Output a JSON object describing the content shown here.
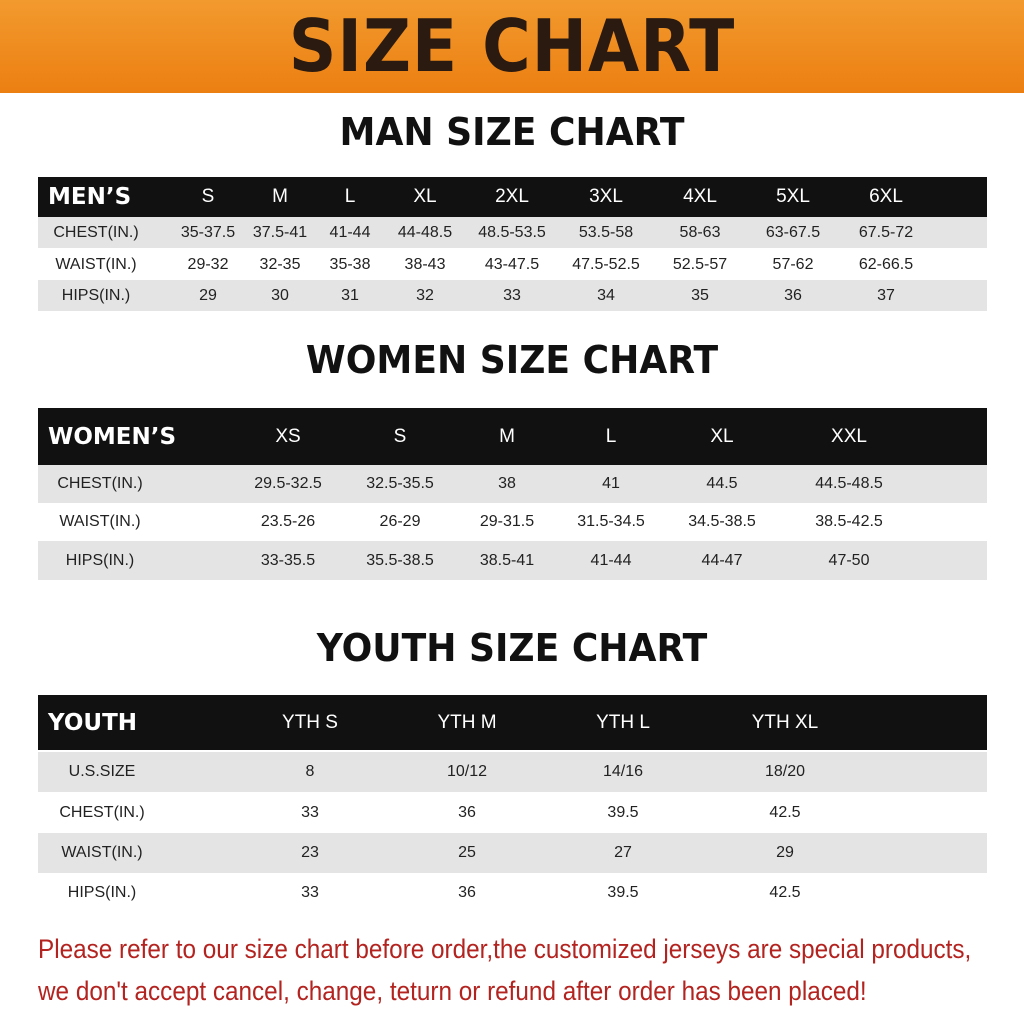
{
  "title": "SIZE CHART",
  "colors": {
    "banner": "#ec7f12",
    "header_row": "#111111",
    "stripe": "#e4e4e4",
    "note": "#b3231f"
  },
  "men": {
    "title": "MAN SIZE CHART",
    "header": [
      "MEN’S",
      "S",
      "M",
      "L",
      "XL",
      "2XL",
      "3XL",
      "4XL",
      "5XL",
      "6XL"
    ],
    "rows": [
      [
        "CHEST(IN.)",
        "35-37.5",
        "37.5-41",
        "41-44",
        "44-48.5",
        "48.5-53.5",
        "53.5-58",
        "58-63",
        "63-67.5",
        "67.5-72"
      ],
      [
        "WAIST(IN.)",
        "29-32",
        "32-35",
        "35-38",
        "38-43",
        "43-47.5",
        "47.5-52.5",
        "52.5-57",
        "57-62",
        "62-66.5"
      ],
      [
        "HIPS(IN.)",
        "29",
        "30",
        "31",
        "32",
        "33",
        "34",
        "35",
        "36",
        "37"
      ]
    ]
  },
  "women": {
    "title": "WOMEN SIZE CHART",
    "header": [
      "WOMEN’S",
      "XS",
      "S",
      "M",
      "L",
      "XL",
      "XXL"
    ],
    "rows": [
      [
        "CHEST(IN.)",
        "29.5-32.5",
        "32.5-35.5",
        "38",
        "41",
        "44.5",
        "44.5-48.5"
      ],
      [
        "WAIST(IN.)",
        "23.5-26",
        "26-29",
        "29-31.5",
        "31.5-34.5",
        "34.5-38.5",
        "38.5-42.5"
      ],
      [
        "HIPS(IN.)",
        "33-35.5",
        "35.5-38.5",
        "38.5-41",
        "41-44",
        "44-47",
        "47-50"
      ]
    ]
  },
  "youth": {
    "title": "YOUTH SIZE CHART",
    "header": [
      "YOUTH",
      "YTH S",
      "YTH M",
      "YTH L",
      "YTH XL"
    ],
    "rows": [
      [
        "U.S.SIZE",
        "8",
        "10/12",
        "14/16",
        "18/20"
      ],
      [
        "CHEST(IN.)",
        "33",
        "36",
        "39.5",
        "42.5"
      ],
      [
        "WAIST(IN.)",
        "23",
        "25",
        "27",
        "29"
      ],
      [
        "HIPS(IN.)",
        "33",
        "36",
        "39.5",
        "42.5"
      ]
    ]
  },
  "note": {
    "line1": "Please refer to our size chart before order,the customized jerseys are special products,",
    "line2": "we don't accept cancel, change, teturn or refund after order has been placed!"
  }
}
